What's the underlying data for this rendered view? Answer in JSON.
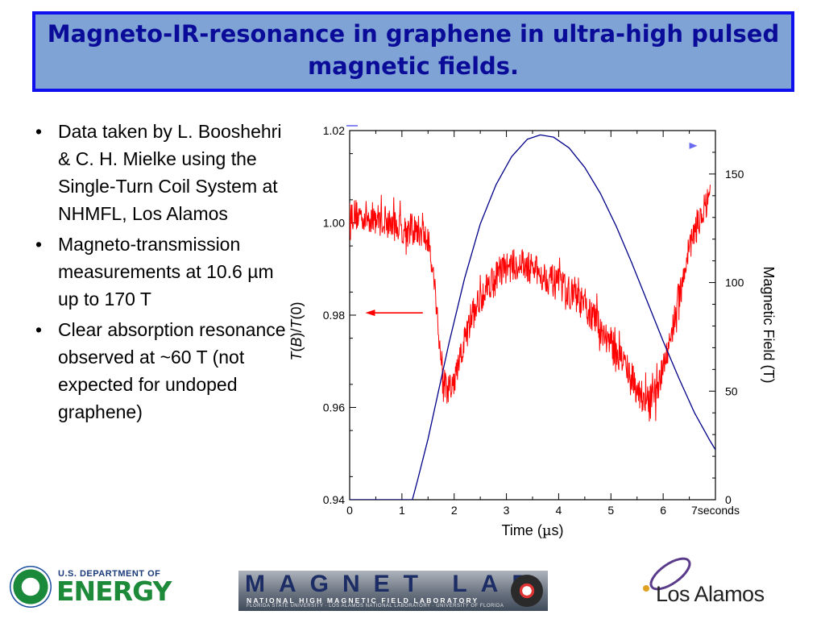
{
  "slide": {
    "title": "Magneto-IR-resonance in graphene in ultra-high pulsed magnetic fields."
  },
  "bullets": [
    "Data taken by L. Booshehri & C. H. Mielke using the Single-Turn Coil System at NHMFL, Los Alamos",
    "Magneto-transmission measurements at 10.6 µm up to 170 T",
    "Clear absorption resonance observed at ~60 T (not expected for undoped graphene)"
  ],
  "logos": {
    "doe_top": "U.S. DEPARTMENT OF",
    "doe_main": "ENERGY",
    "maglab_main": "MAGNET LAB",
    "maglab_sub": "NATIONAL HIGH MAGNETIC FIELD LABORATORY",
    "maglab_sub2": "FLORIDA STATE UNIVERSITY · LOS ALAMOS NATIONAL LABORATORY · UNIVERSITY OF FLORIDA",
    "lanl": "Los Alamos"
  },
  "colors": {
    "transmission": "#ff0000",
    "field": "#000088",
    "indicator": "#6a6af0",
    "title_text": "#0b0b9a",
    "title_bg": "#7ea3d4",
    "title_border": "#1010ee"
  },
  "chart_data": {
    "type": "line",
    "xlabel_prefix": "Time (",
    "xlabel_unit": "µ",
    "xlabel_suffix": "s)",
    "ylabel_left": [
      "T",
      "(",
      "B",
      ")/",
      "T",
      "(0)"
    ],
    "ylabel_right": "Magnetic Field (T)",
    "xlim": [
      0,
      7
    ],
    "ylim_left": [
      0.94,
      1.02
    ],
    "ylim_right": [
      0,
      170
    ],
    "x_ticks": [
      0,
      1,
      2,
      3,
      4,
      5,
      6
    ],
    "x_end_label": "7seconds",
    "y_left_ticks": [
      0.94,
      0.96,
      0.98,
      1.0,
      1.02
    ],
    "y_left_tick_labels": [
      "0.94",
      "0.96",
      "0.98",
      "1.00",
      "1.02"
    ],
    "y_right_ticks": [
      0,
      50,
      100,
      150
    ],
    "series": [
      {
        "axis": "left",
        "points": [
          [
            0,
            1.002
          ],
          [
            0.5,
            1.001
          ],
          [
            1.0,
            0.999
          ],
          [
            1.4,
            0.998
          ],
          [
            1.55,
            0.994
          ],
          [
            1.65,
            0.984
          ],
          [
            1.75,
            0.97
          ],
          [
            1.85,
            0.963
          ],
          [
            2.0,
            0.965
          ],
          [
            2.15,
            0.972
          ],
          [
            2.35,
            0.98
          ],
          [
            2.6,
            0.986
          ],
          [
            2.9,
            0.99
          ],
          [
            3.2,
            0.991
          ],
          [
            3.5,
            0.99
          ],
          [
            3.8,
            0.988
          ],
          [
            4.1,
            0.986
          ],
          [
            4.4,
            0.983
          ],
          [
            4.7,
            0.979
          ],
          [
            5.0,
            0.974
          ],
          [
            5.3,
            0.969
          ],
          [
            5.5,
            0.964
          ],
          [
            5.7,
            0.961
          ],
          [
            5.9,
            0.964
          ],
          [
            6.1,
            0.973
          ],
          [
            6.3,
            0.984
          ],
          [
            6.5,
            0.995
          ],
          [
            6.7,
            1.001
          ],
          [
            6.9,
            1.005
          ]
        ],
        "noise": 0.0035
      },
      {
        "axis": "right",
        "points": [
          [
            0,
            0
          ],
          [
            1.2,
            0
          ],
          [
            1.3,
            9
          ],
          [
            1.5,
            28
          ],
          [
            1.7,
            50
          ],
          [
            1.9,
            72
          ],
          [
            2.2,
            102
          ],
          [
            2.5,
            127
          ],
          [
            2.8,
            145
          ],
          [
            3.1,
            158
          ],
          [
            3.4,
            166
          ],
          [
            3.65,
            168
          ],
          [
            3.9,
            167
          ],
          [
            4.2,
            162
          ],
          [
            4.5,
            153
          ],
          [
            4.8,
            141
          ],
          [
            5.1,
            126
          ],
          [
            5.4,
            109
          ],
          [
            5.7,
            91
          ],
          [
            6.0,
            73
          ],
          [
            6.3,
            56
          ],
          [
            6.6,
            40
          ],
          [
            6.9,
            27
          ],
          [
            7.0,
            23
          ]
        ]
      }
    ],
    "annotations": [
      {
        "type": "arrow",
        "direction": "left",
        "y_value": 0.9805,
        "x_from": 1.4,
        "x_to": 0.3
      },
      {
        "type": "arrowhead",
        "direction": "right",
        "x_value": 6.5,
        "y_right_value": 163
      }
    ]
  }
}
